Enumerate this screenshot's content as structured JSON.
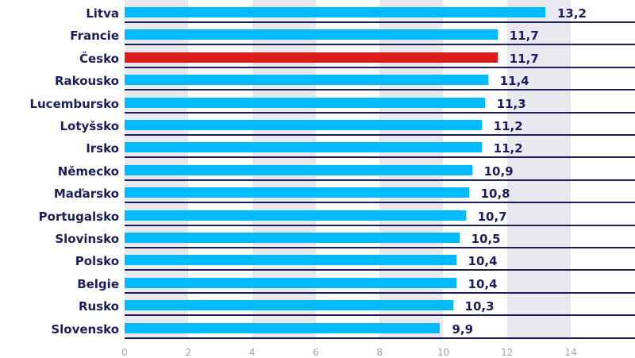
{
  "chart_data": {
    "type": "bar",
    "orientation": "horizontal",
    "title": "",
    "xlabel": "",
    "ylabel": "",
    "categories": [
      "Litva",
      "Francie",
      "Česko",
      "Rakousko",
      "Lucembursko",
      "Lotyšsko",
      "Irsko",
      "Německo",
      "Maďarsko",
      "Portugalsko",
      "Slovinsko",
      "Polsko",
      "Belgie",
      "Rusko",
      "Slovensko"
    ],
    "values": [
      13.2,
      11.7,
      11.7,
      11.4,
      11.3,
      11.2,
      11.2,
      10.9,
      10.8,
      10.7,
      10.5,
      10.4,
      10.4,
      10.3,
      9.9
    ],
    "value_labels": [
      "13,2",
      "11,7",
      "11,7",
      "11,4",
      "11,3",
      "11,2",
      "11,2",
      "10,9",
      "10,8",
      "10,7",
      "10,5",
      "10,4",
      "10,4",
      "10,3",
      "9,9"
    ],
    "highlight": "Česko",
    "xlim": [
      0,
      16
    ],
    "xticks": [
      0,
      2,
      4,
      6,
      8,
      10,
      12,
      14
    ],
    "grid": "alternating vertical bands",
    "legend": null
  },
  "colors": {
    "bar": "#00bbff",
    "highlight_bar": "#dd1c1c",
    "text": "#1c1e5a",
    "band": "#e9e8ee",
    "tick": "#a0a3b8"
  }
}
